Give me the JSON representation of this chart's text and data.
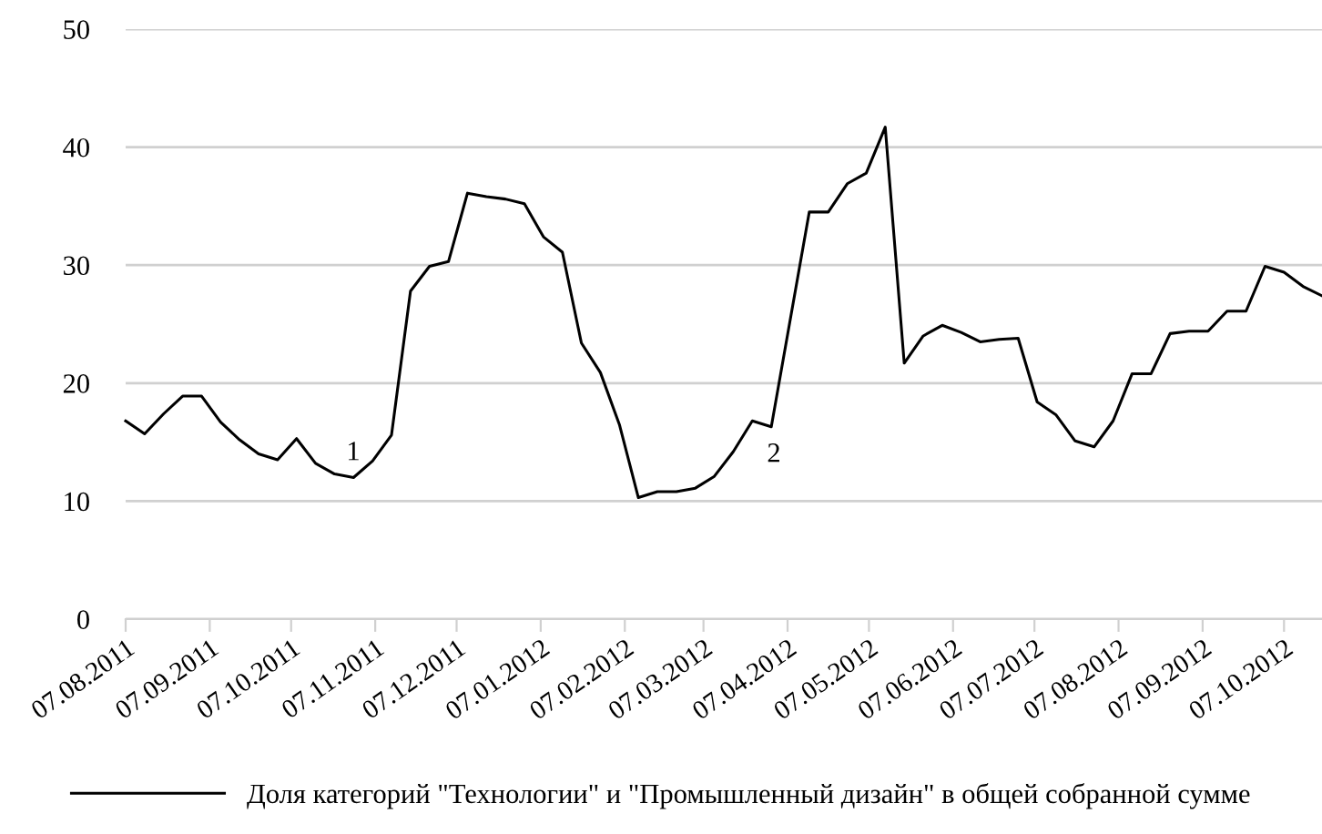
{
  "chart_data": {
    "type": "line",
    "x": [
      "2011-08-07",
      "2011-08-14",
      "2011-08-21",
      "2011-08-28",
      "2011-09-04",
      "2011-09-11",
      "2011-09-18",
      "2011-09-25",
      "2011-10-02",
      "2011-10-09",
      "2011-10-16",
      "2011-10-23",
      "2011-10-30",
      "2011-11-06",
      "2011-11-13",
      "2011-11-20",
      "2011-11-27",
      "2011-12-04",
      "2011-12-11",
      "2011-12-18",
      "2011-12-25",
      "2012-01-01",
      "2012-01-08",
      "2012-01-15",
      "2012-01-22",
      "2012-01-29",
      "2012-02-05",
      "2012-02-12",
      "2012-02-19",
      "2012-02-26",
      "2012-03-04",
      "2012-03-11",
      "2012-03-18",
      "2012-03-25",
      "2012-04-01",
      "2012-04-08",
      "2012-04-15",
      "2012-04-22",
      "2012-04-29",
      "2012-05-06",
      "2012-05-13",
      "2012-05-20",
      "2012-05-27",
      "2012-06-03",
      "2012-06-10",
      "2012-06-17",
      "2012-06-24",
      "2012-07-01",
      "2012-07-08",
      "2012-07-15",
      "2012-07-22",
      "2012-07-29",
      "2012-08-05",
      "2012-08-12",
      "2012-08-19",
      "2012-08-26",
      "2012-09-02",
      "2012-09-09",
      "2012-09-16",
      "2012-09-23",
      "2012-09-30",
      "2012-10-07",
      "2012-10-14",
      "2012-10-21"
    ],
    "series": [
      {
        "name": "Доля категорий \"Технологии\" и \"Промышленный дизайн\" в общей собранной сумме",
        "color": "#000000",
        "values": [
          16.8,
          15.7,
          17.4,
          18.9,
          18.9,
          16.7,
          15.2,
          14.0,
          13.5,
          15.3,
          13.2,
          12.3,
          12.0,
          13.4,
          15.6,
          27.8,
          29.9,
          30.3,
          36.1,
          35.8,
          35.6,
          35.2,
          32.4,
          31.1,
          23.4,
          20.9,
          16.5,
          10.3,
          10.8,
          10.8,
          11.1,
          12.1,
          14.2,
          16.8,
          16.3,
          25.4,
          34.5,
          34.5,
          36.9,
          37.8,
          41.7,
          21.7,
          24.0,
          24.9,
          24.3,
          23.5,
          23.7,
          23.8,
          18.4,
          17.3,
          15.1,
          14.6,
          16.8,
          20.8,
          20.8,
          24.2,
          24.4,
          24.4,
          26.1,
          26.1,
          29.9,
          29.4,
          28.2,
          27.4
        ]
      }
    ],
    "xlim": [
      "2011-08-07",
      "2012-10-21"
    ],
    "xticks": [
      {
        "value": "2011-08-07",
        "label": "07.08.2011"
      },
      {
        "value": "2011-09-07",
        "label": "07.09.2011"
      },
      {
        "value": "2011-10-07",
        "label": "07.10.2011"
      },
      {
        "value": "2011-11-07",
        "label": "07.11.2011"
      },
      {
        "value": "2011-12-07",
        "label": "07.12.2011"
      },
      {
        "value": "2012-01-07",
        "label": "07.01.2012"
      },
      {
        "value": "2012-02-07",
        "label": "07.02.2012"
      },
      {
        "value": "2012-03-07",
        "label": "07.03.2012"
      },
      {
        "value": "2012-04-07",
        "label": "07.04.2012"
      },
      {
        "value": "2012-05-07",
        "label": "07.05.2012"
      },
      {
        "value": "2012-06-07",
        "label": "07.06.2012"
      },
      {
        "value": "2012-07-07",
        "label": "07.07.2012"
      },
      {
        "value": "2012-08-07",
        "label": "07.08.2012"
      },
      {
        "value": "2012-09-07",
        "label": "07.09.2012"
      },
      {
        "value": "2012-10-07",
        "label": "07.10.2012"
      }
    ],
    "ylim": [
      0,
      50
    ],
    "yticks": [
      0,
      10,
      20,
      30,
      40,
      50
    ],
    "annotations": [
      "1",
      "2"
    ],
    "grid": "y",
    "legend": "bottom",
    "line_style": "solid",
    "marker": "none"
  }
}
